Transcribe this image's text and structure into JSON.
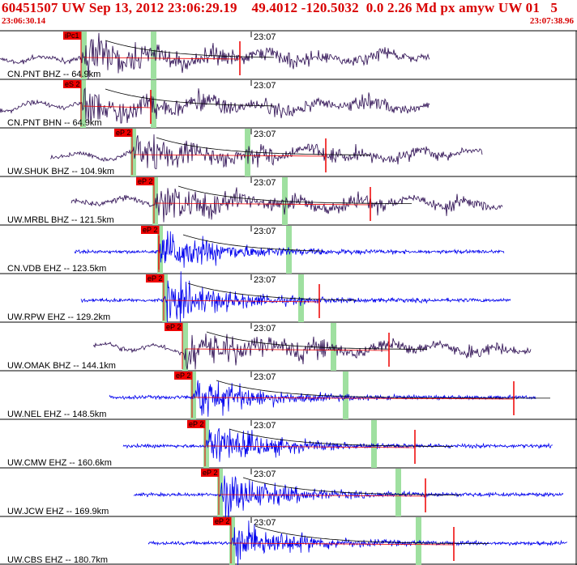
{
  "header": {
    "title": "60451507 UW Sep 13, 2012 23:06:29.19    49.4012 -120.5032  0.0 2.26 Md px amyw UW 01   5",
    "start_time": "23:06:30.14",
    "end_time": "23:07:38.96"
  },
  "colors": {
    "header_text": "#d80000",
    "broadband_trace": "#2a0a50",
    "shortperiod_trace": "#0000ee",
    "pick_box": "#ee0000",
    "coda_window": "#9fe0a0",
    "separator": "#000000"
  },
  "minute_mark": "23:07",
  "traces": [
    {
      "label": "CN.PNT BHZ -- 64.9km",
      "pick": "iPc1",
      "type": "broadband"
    },
    {
      "label": "CN.PNT BHN -- 64.9km",
      "pick": "eS 2",
      "type": "broadband"
    },
    {
      "label": "UW.SHUK BHZ -- 104.9km",
      "pick": "eP 2",
      "type": "broadband"
    },
    {
      "label": "UW.MRBL BHZ -- 121.5km",
      "pick": "eP 2",
      "type": "broadband"
    },
    {
      "label": "CN.VDB EHZ -- 123.5km",
      "pick": "eP 2",
      "type": "shortperiod"
    },
    {
      "label": "UW.RPW EHZ -- 129.2km",
      "pick": "eP 2",
      "type": "shortperiod"
    },
    {
      "label": "UW.OMAK BHZ -- 144.1km",
      "pick": "eP 2",
      "type": "broadband"
    },
    {
      "label": "UW.NEL EHZ -- 148.5km",
      "pick": "eP 2",
      "type": "shortperiod"
    },
    {
      "label": "UW.CMW EHZ -- 160.6km",
      "pick": "eP 2",
      "type": "shortperiod"
    },
    {
      "label": "UW.JCW EHZ -- 169.9km",
      "pick": "eP 2",
      "type": "shortperiod"
    },
    {
      "label": "UW.CBS EHZ -- 180.7km",
      "pick": "eP 2",
      "type": "shortperiod"
    }
  ]
}
